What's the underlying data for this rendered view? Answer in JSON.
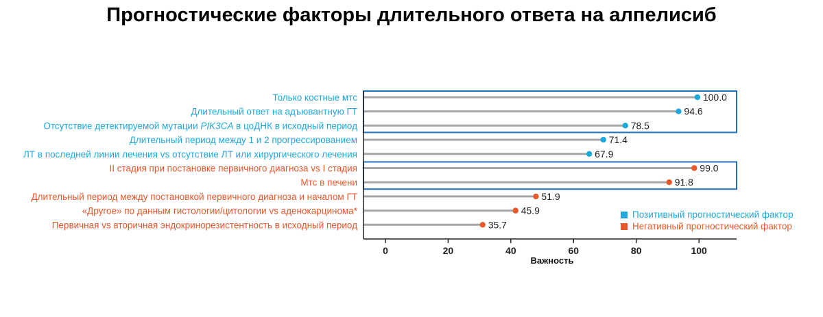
{
  "title": "Прогностические факторы длительного ответа на алпелисиб",
  "colors": {
    "positive": "#1fa8dc",
    "negative": "#e8582a",
    "stem": "#a6a6a6",
    "box": "#1f6fbf",
    "axis": "#222222"
  },
  "chart_data": {
    "type": "lollipop",
    "orientation": "horizontal",
    "xlabel": "Важность",
    "xlim": [
      -7,
      112
    ],
    "xticks": [
      0,
      20,
      40,
      60,
      80,
      100
    ],
    "xtick_labels": [
      "0",
      "20",
      "40",
      "60",
      "80",
      "100"
    ],
    "legend_position": "bottom-right",
    "legend": [
      {
        "label": "Позитивный прогностический фактор",
        "group": "positive"
      },
      {
        "label": "Негативный прогностический фактор",
        "group": "negative"
      }
    ],
    "categories": [
      {
        "parts": [
          "Только костные мтс"
        ],
        "group": "positive"
      },
      {
        "parts": [
          "Длительный ответ на адъювантную ГТ"
        ],
        "group": "positive"
      },
      {
        "parts": [
          "Отсутствие детектируемой мутации ",
          "PIK3CA",
          " в цоДНК в исходный период"
        ],
        "italic_part": 1,
        "group": "positive"
      },
      {
        "parts": [
          "Длительный период между 1 и 2 прогрессированием"
        ],
        "group": "positive"
      },
      {
        "parts": [
          "ЛТ в последней линии лечения vs отсутствие ЛТ или хирургического лечения"
        ],
        "group": "positive"
      },
      {
        "parts": [
          "II стадия при постановке первичного диагноза vs I стадия"
        ],
        "group": "negative"
      },
      {
        "parts": [
          "Мтс в печени"
        ],
        "group": "negative"
      },
      {
        "parts": [
          "Длительный период между постановкой первичного диагноза и началом ГТ"
        ],
        "group": "negative"
      },
      {
        "parts": [
          "«Другое» по данным гистологии/цитологии vs аденокарцинома*"
        ],
        "group": "negative"
      },
      {
        "parts": [
          "Первичная vs вторичная эндокринорезистентность в исходный период"
        ],
        "group": "negative"
      }
    ],
    "values": [
      100.0,
      94.6,
      78.5,
      71.4,
      67.9,
      99.0,
      91.8,
      51.9,
      45.9,
      35.7
    ],
    "value_labels": [
      "100.0",
      "94.6",
      "78.5",
      "71.4",
      "67.9",
      "99.0",
      "91.8",
      "51.9",
      "45.9",
      "35.7"
    ],
    "point_x": [
      99.5,
      93.5,
      76.5,
      69.5,
      65.0,
      98.5,
      90.5,
      48.0,
      41.5,
      31.0
    ],
    "highlight_groups": [
      [
        0,
        2
      ],
      [
        5,
        6
      ]
    ]
  }
}
